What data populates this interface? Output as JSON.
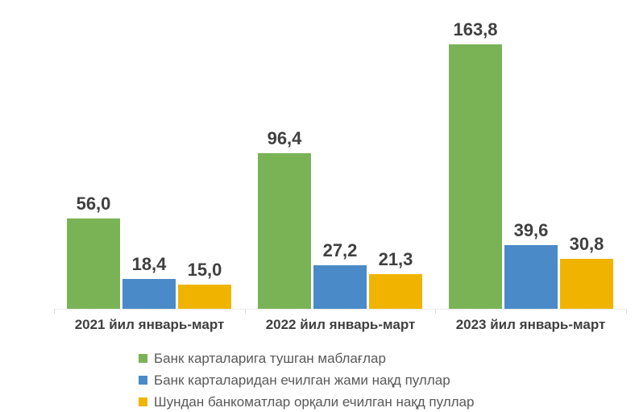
{
  "chart_data": {
    "type": "bar",
    "categories": [
      "2021 йил январь-март",
      "2022 йил январь-март",
      "2023 йил январь-март"
    ],
    "series": [
      {
        "key": "funds-received-on-cards",
        "name": "Банк карталарига тушган маблағлар",
        "color": "#7ab356",
        "values": [
          56.0,
          96.4,
          163.8
        ],
        "labels": [
          "56,0",
          "96,4",
          "163,8"
        ]
      },
      {
        "key": "total-cash-withdrawn-from-cards",
        "name": "Банк карталаридан ечилган жами нақд пуллар",
        "color": "#4a8ac8",
        "values": [
          18.4,
          27.2,
          39.6
        ],
        "labels": [
          "18,4",
          "27,2",
          "39,6"
        ]
      },
      {
        "key": "cash-withdrawn-via-atm",
        "name": "Шундан банкоматлар орқали ечилган нақд пуллар",
        "color": "#f0b400",
        "values": [
          15.0,
          21.3,
          30.8
        ],
        "labels": [
          "15,0",
          "21,3",
          "30,8"
        ]
      }
    ],
    "ylim": [
      0,
      180
    ],
    "grid": false,
    "legend_position": "bottom-left",
    "colors": {
      "value_label": "#404040",
      "category_label": "#404040",
      "legend_text": "#595959",
      "axis_line": "#d9d9d9",
      "background": "#ffffff"
    }
  }
}
